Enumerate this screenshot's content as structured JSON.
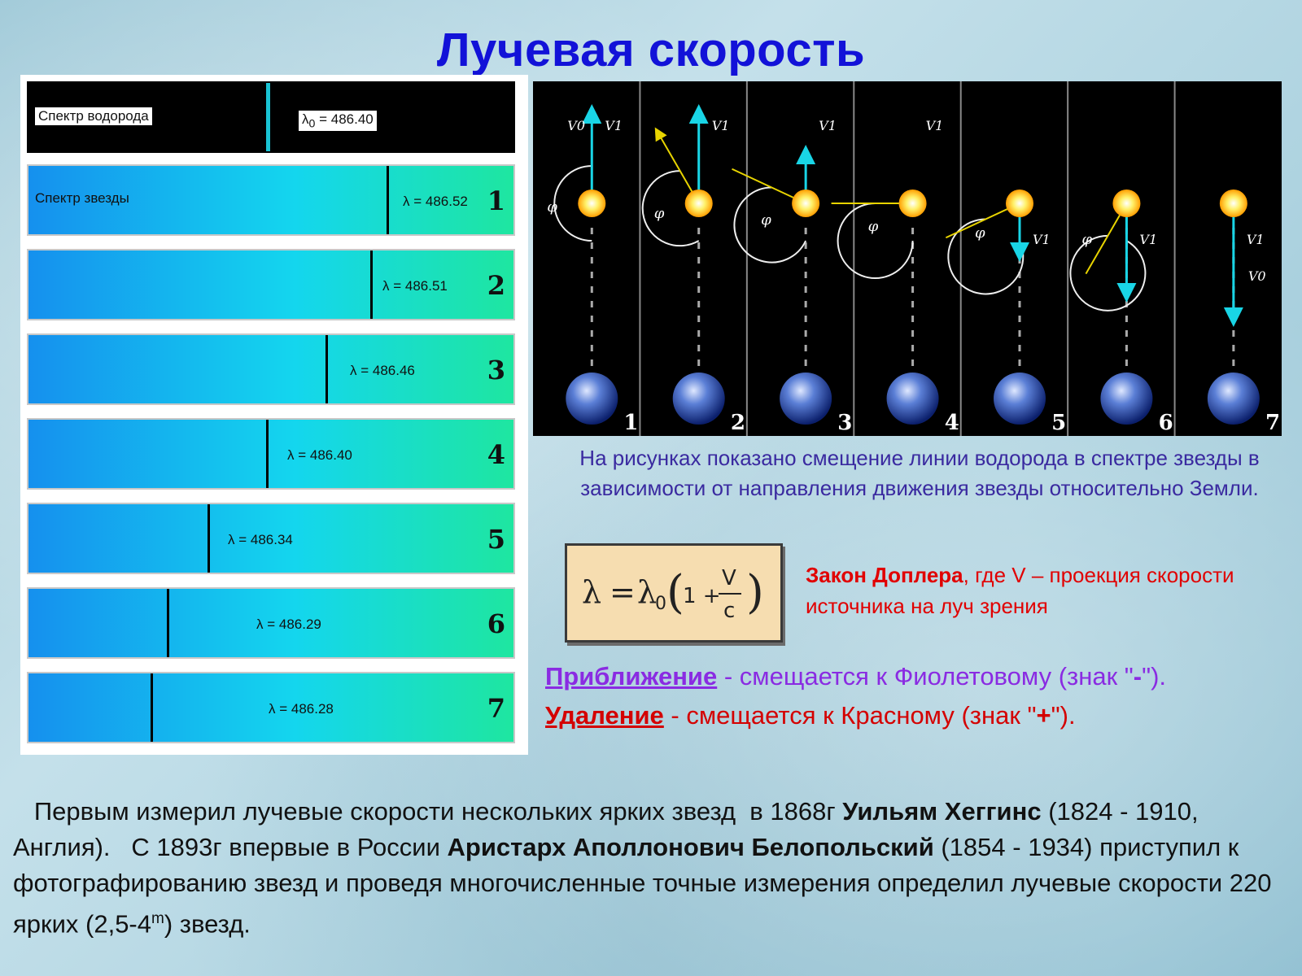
{
  "title": "Лучевая скорость",
  "reference": {
    "label": "Спектр водорода",
    "lambda0": "486.40"
  },
  "star_label": "Спектр звезды",
  "spectra": [
    {
      "num": "1",
      "lambda": "486.52"
    },
    {
      "num": "2",
      "lambda": "486.51"
    },
    {
      "num": "3",
      "lambda": "486.46"
    },
    {
      "num": "4",
      "lambda": "486.40"
    },
    {
      "num": "5",
      "lambda": "486.34"
    },
    {
      "num": "6",
      "lambda": "486.29"
    },
    {
      "num": "7",
      "lambda": "486.28"
    }
  ],
  "motion": {
    "panels": [
      "1",
      "2",
      "3",
      "4",
      "5",
      "6",
      "7"
    ],
    "v0": "V0",
    "v1": "V1",
    "phi": "φ"
  },
  "description": "На рисунках показано смещение линии водорода в спектре звезды в зависимости от направления движения звезды относительно Земли.",
  "formula": {
    "lambda": "λ",
    "eq": "=",
    "lambda0": "λ",
    "sub0": "0",
    "one": "1 +",
    "v": "V",
    "c": "c"
  },
  "doppler": {
    "bold": "Закон Доплера",
    "rest": ", где V – проекция скорости источника на луч зрения"
  },
  "rules": {
    "approach": {
      "term": "Приближение",
      "text": " - смещается к Фиолетовому (знак \"",
      "sign": "-",
      "end": "\")."
    },
    "recede": {
      "term": "Удаление",
      "text": " - смещается к Красному (знак \"",
      "sign": "+",
      "end": "\")."
    }
  },
  "paragraph": {
    "p1": "   Первым измерил лучевые скорости нескольких ярких звезд  в 1868г ",
    "b1": "Уильям  Хеггинс",
    "p2": " (1824 - 1910, Англия).   С 1893г впервые в России ",
    "b2": "Аристарх Аполлонович Белопольский",
    "p3": " (1854 - 1934) приступил к фотографированию звезд и проведя многочисленные точные измерения определил лучевые скорости 220 ярких (2,5-4",
    "sup": "m",
    "p4": ") звезд."
  }
}
